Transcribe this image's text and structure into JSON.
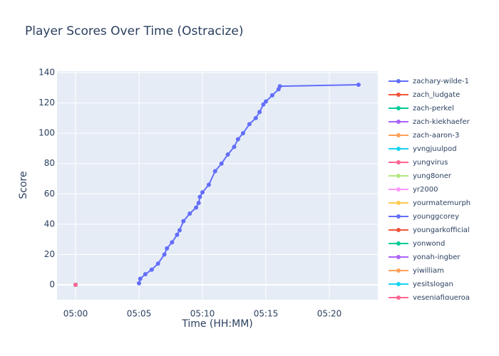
{
  "chart_data": {
    "type": "line",
    "title": "Player Scores Over Time (Ostracize)",
    "x_label": "Time (HH:MM)",
    "y_label": "Score",
    "xlim": [
      298.54,
      323.82
    ],
    "ylim": [
      -9.86,
      140.94
    ],
    "xticks": [
      {
        "value": 300,
        "label": "05:00"
      },
      {
        "value": 305,
        "label": "05:05"
      },
      {
        "value": 310,
        "label": "05:10"
      },
      {
        "value": 315,
        "label": "05:15"
      },
      {
        "value": 320,
        "label": "05:20"
      }
    ],
    "yticks": [
      0,
      20,
      40,
      60,
      80,
      100,
      120,
      140
    ],
    "grid": true,
    "legend": "right",
    "series": [
      {
        "name": "zachary-wilde-1",
        "color": "#636efa",
        "x": [
          305,
          305.1,
          305.5,
          306,
          306.5,
          307,
          307.2,
          307.6,
          308,
          308.2,
          308.5,
          309,
          309.5,
          309.7,
          309.8,
          310,
          310.5,
          311,
          311.5,
          312,
          312.5,
          312.8,
          313.2,
          313.7,
          314.2,
          314.5,
          314.8,
          315,
          315.5,
          316,
          316.1,
          322.3
        ],
        "values": [
          1,
          4,
          7,
          10,
          14,
          20,
          24,
          28,
          33,
          36,
          42,
          47,
          51,
          54,
          58,
          61,
          66,
          75,
          80,
          86,
          91,
          96,
          100,
          106,
          110,
          114,
          119,
          121,
          125,
          129,
          131,
          132
        ]
      },
      {
        "name": "zach_ludgate",
        "color": "#EF553B",
        "x": [
          300
        ],
        "values": [
          0
        ]
      },
      {
        "name": "zach-perkel",
        "color": "#00cc96",
        "x": [
          300
        ],
        "values": [
          0
        ]
      },
      {
        "name": "zach-kiekhaefer",
        "color": "#ab63fa",
        "x": [
          300
        ],
        "values": [
          0
        ]
      },
      {
        "name": "zach-aaron-3",
        "color": "#FFA15A",
        "x": [
          300
        ],
        "values": [
          0
        ]
      },
      {
        "name": "yvngjuulpod",
        "color": "#19d3f3",
        "x": [
          300
        ],
        "values": [
          0
        ]
      },
      {
        "name": "yungvirus",
        "color": "#FF6692",
        "x": [
          300
        ],
        "values": [
          0
        ]
      },
      {
        "name": "yung8oner",
        "color": "#B6E880",
        "x": [
          300
        ],
        "values": [
          0
        ]
      },
      {
        "name": "yr2000",
        "color": "#FF97FF",
        "x": [
          300
        ],
        "values": [
          0
        ]
      },
      {
        "name": "yourmatemurph",
        "color": "#FECB52",
        "x": [
          300
        ],
        "values": [
          0
        ]
      },
      {
        "name": "younggcorey",
        "color": "#636efa",
        "x": [
          300
        ],
        "values": [
          0
        ]
      },
      {
        "name": "youngarkofficial",
        "color": "#EF553B",
        "x": [
          300
        ],
        "values": [
          0
        ]
      },
      {
        "name": "yonwond",
        "color": "#00cc96",
        "x": [
          300
        ],
        "values": [
          0
        ]
      },
      {
        "name": "yonah-ingber",
        "color": "#ab63fa",
        "x": [
          300
        ],
        "values": [
          0
        ]
      },
      {
        "name": "yiwilliam",
        "color": "#FFA15A",
        "x": [
          300
        ],
        "values": [
          0
        ]
      },
      {
        "name": "yesitslogan",
        "color": "#19d3f3",
        "x": [
          300
        ],
        "values": [
          0
        ]
      },
      {
        "name": "yeseniafigueroa",
        "color": "#FF6692",
        "x": [
          300
        ],
        "values": [
          0
        ]
      }
    ]
  }
}
